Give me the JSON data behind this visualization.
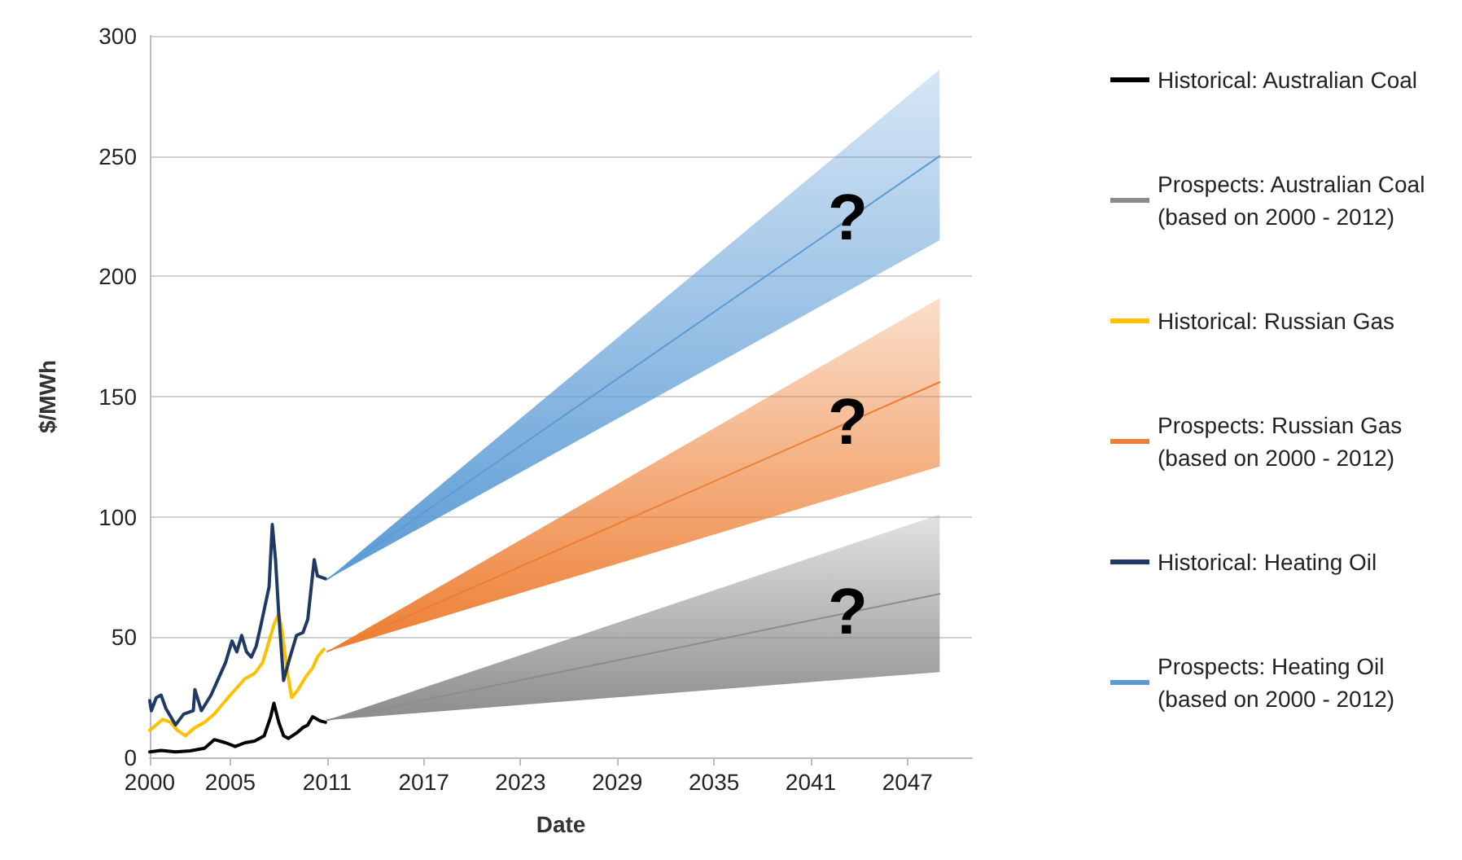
{
  "chart_data": {
    "type": "line",
    "xlabel": "Date",
    "ylabel": "$/MWh",
    "xlim": [
      2000,
      2051
    ],
    "xticks": [
      2000,
      2005,
      2011,
      2017,
      2023,
      2029,
      2035,
      2041,
      2047
    ],
    "ylim": [
      0,
      300
    ],
    "yticks": [
      0,
      50,
      100,
      150,
      200,
      250,
      300
    ],
    "grid": "y",
    "legend": "right",
    "marker": "none",
    "line_style": "solid",
    "series": [
      {
        "name": "Historical: Australian Coal",
        "color": "#000000",
        "x": [
          2000.0,
          2000.7,
          2001.6,
          2002.5,
          2003.4,
          2004.0,
          2004.7,
          2005.3,
          2005.9,
          2006.5,
          2007.1,
          2007.5,
          2007.7,
          2008.0,
          2008.3,
          2008.6,
          2009.1,
          2009.5,
          2009.8,
          2010.1,
          2010.6,
          2010.9
        ],
        "values": [
          2.3,
          2.9,
          2.3,
          2.7,
          3.8,
          7.4,
          6.1,
          4.5,
          6.1,
          6.8,
          9.0,
          16.9,
          22.5,
          14.6,
          9.0,
          7.9,
          10.1,
          12.4,
          13.5,
          16.9,
          15.1,
          14.6
        ]
      },
      {
        "name": "Prospects: Australian Coal (based on 2000 - 2012)",
        "color": "#8c8c8c",
        "x": [
          2011,
          2049
        ],
        "values": [
          15.5,
          68
        ],
        "lower": [
          15.5,
          35.5
        ],
        "upper": [
          15.5,
          101
        ]
      },
      {
        "name": "Historical: Russian Gas",
        "color": "#ffc000",
        "x": [
          2000.0,
          2000.4,
          2000.8,
          2001.3,
          2001.7,
          2002.2,
          2002.8,
          2003.4,
          2004.0,
          2004.7,
          2005.3,
          2005.9,
          2006.5,
          2007.0,
          2007.4,
          2007.7,
          2008.0,
          2008.2,
          2008.5,
          2008.8,
          2009.2,
          2009.7,
          2010.1,
          2010.4,
          2010.8
        ],
        "values": [
          11.3,
          13.5,
          15.8,
          14.6,
          11.3,
          9.0,
          12.4,
          14.6,
          18.0,
          23.6,
          28.2,
          32.7,
          34.9,
          39.4,
          48.4,
          55.2,
          59.7,
          52.9,
          37.2,
          24.8,
          28.2,
          33.8,
          37.2,
          41.7,
          45.0
        ]
      },
      {
        "name": "Prospects: Russian Gas (based on 2000 - 2012)",
        "color": "#ed7d31",
        "x": [
          2011,
          2049
        ],
        "values": [
          44,
          156
        ],
        "lower": [
          44,
          121
        ],
        "upper": [
          44,
          191
        ]
      },
      {
        "name": "Historical: Heating Oil",
        "color": "#1f3864",
        "x": [
          2000.0,
          2000.1,
          2000.4,
          2000.7,
          2001.0,
          2001.6,
          2002.1,
          2002.7,
          2002.8,
          2003.2,
          2003.8,
          2004.4,
          2004.7,
          2005.1,
          2005.4,
          2005.7,
          2006.0,
          2006.3,
          2006.6,
          2006.9,
          2007.4,
          2007.6,
          2007.8,
          2008.0,
          2008.3,
          2008.6,
          2009.1,
          2009.5,
          2009.8,
          2010.2,
          2010.4,
          2010.9
        ],
        "values": [
          23.6,
          19.4,
          24.8,
          25.9,
          20.3,
          13.5,
          18.0,
          19.4,
          28.2,
          19.4,
          25.9,
          34.9,
          39.4,
          48.4,
          43.9,
          50.7,
          43.9,
          41.7,
          46.2,
          55.2,
          70.9,
          96.8,
          82.2,
          59.7,
          32.0,
          39.4,
          50.7,
          51.9,
          57.4,
          82.2,
          75.5,
          74.3
        ]
      },
      {
        "name": "Prospects: Heating Oil (based on 2000 - 2012)",
        "color": "#5b9bd5",
        "x": [
          2011,
          2049
        ],
        "values": [
          74,
          250
        ],
        "lower": [
          74,
          215
        ],
        "upper": [
          74,
          286
        ]
      }
    ],
    "annotations": [
      "?",
      "?",
      "?"
    ]
  }
}
